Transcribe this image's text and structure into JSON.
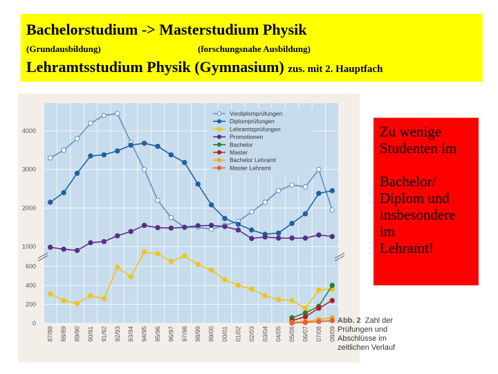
{
  "banner": {
    "line1": "Bachelorstudium -> Masterstudium Physik",
    "sub_left": "(Grundausbildung)",
    "sub_right": "(forschungsnahe Ausbildung)",
    "line3_main": "Lehramtsstudium  Physik (Gymnasium)",
    "line3_small": "zus. mit 2. Hauptfach"
  },
  "note": {
    "lines": [
      "Zu wenige",
      "Studenten im",
      "",
      "Bachelor/",
      "Diplom und",
      "insbesondere",
      "im",
      "Lehramt!"
    ]
  },
  "caption": {
    "number": "Abb. 2",
    "line1": "Zahl der",
    "line2": "Prüfungen und",
    "line3": "Abschlüsse im",
    "line4": "zeitlichen Verlauf"
  },
  "colors": {
    "banner_bg": "#ffff00",
    "note_bg": "#ff0000",
    "plot_bg": "#c7dced"
  },
  "chart_data": {
    "type": "line",
    "broken_y_axis": true,
    "upper_ticks": [
      "1000",
      "2000",
      "3000",
      "4000"
    ],
    "lower_ticks": [
      "0",
      "200",
      "400",
      "600"
    ],
    "categories": [
      "87/88",
      "88/89",
      "89/90",
      "90/91",
      "91/92",
      "92/93",
      "93/94",
      "94/95",
      "95/96",
      "96/97",
      "97/98",
      "98/99",
      "99/00",
      "00/01",
      "01/02",
      "02/03",
      "03/04",
      "04/05",
      "05/06",
      "06/07",
      "07/08",
      "08/09"
    ],
    "series": [
      {
        "name": "Vordiplomprüfungen",
        "color": "#5b8ec6",
        "fill": "#ffffff",
        "values": [
          3300,
          3500,
          3800,
          4200,
          4400,
          4450,
          3700,
          3000,
          2200,
          1750,
          1500,
          1500,
          1450,
          1550,
          1650,
          1900,
          2150,
          2450,
          2600,
          2550,
          3000,
          1950
        ]
      },
      {
        "name": "Diplomprüfungen",
        "color": "#1f5fa0",
        "fill": "#1f5fa0",
        "values": [
          2150,
          2400,
          2900,
          3350,
          3380,
          3480,
          3630,
          3680,
          3600,
          3380,
          3180,
          2620,
          2080,
          1730,
          1580,
          1430,
          1320,
          1350,
          1600,
          1850,
          2380,
          2450
        ]
      },
      {
        "name": "Lehramtsprüfungen",
        "color": "#f0c419",
        "fill": "#f0c419",
        "values": [
          310,
          240,
          210,
          290,
          260,
          590,
          490,
          750,
          730,
          650,
          710,
          620,
          560,
          460,
          400,
          360,
          290,
          250,
          240,
          160,
          350,
          360
        ]
      },
      {
        "name": "Promotionen",
        "color": "#5b2d82",
        "fill": "#5b2d82",
        "values": [
          800,
          780,
          900,
          1100,
          1130,
          1280,
          1390,
          1550,
          1490,
          1480,
          1500,
          1540,
          1550,
          1520,
          1430,
          1210,
          1250,
          1220,
          1220,
          1220,
          1300,
          1260
        ]
      },
      {
        "name": "Bachelor",
        "color": "#2e7d32",
        "fill": "#2e7d32",
        "values": [
          null,
          null,
          null,
          null,
          null,
          null,
          null,
          null,
          null,
          null,
          null,
          null,
          null,
          null,
          null,
          null,
          null,
          null,
          60,
          110,
          180,
          400
        ]
      },
      {
        "name": "Master",
        "color": "#b11f24",
        "fill": "#b11f24",
        "values": [
          null,
          null,
          null,
          null,
          null,
          null,
          null,
          null,
          null,
          null,
          null,
          null,
          null,
          null,
          null,
          null,
          null,
          null,
          30,
          70,
          160,
          240
        ]
      },
      {
        "name": "Bachelor Lehramt",
        "color": "#f5a623",
        "fill": "#f5a623",
        "values": [
          null,
          null,
          null,
          null,
          null,
          null,
          null,
          null,
          null,
          null,
          null,
          null,
          null,
          null,
          null,
          null,
          null,
          null,
          10,
          20,
          40,
          60
        ]
      },
      {
        "name": "Master Lehramt",
        "color": "#e8632a",
        "fill": "#e8632a",
        "values": [
          null,
          null,
          null,
          null,
          null,
          null,
          null,
          null,
          null,
          null,
          null,
          null,
          null,
          null,
          null,
          null,
          null,
          null,
          5,
          10,
          20,
          30
        ]
      }
    ]
  }
}
